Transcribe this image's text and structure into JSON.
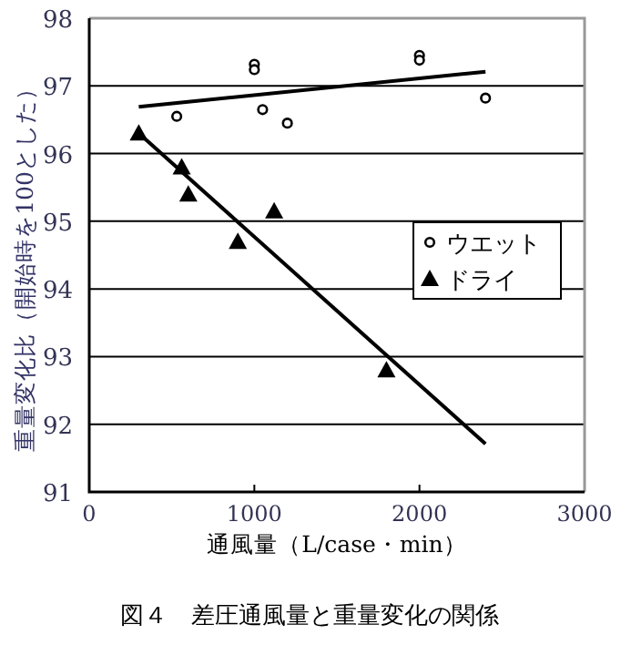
{
  "chart_data": {
    "type": "scatter",
    "title": "図４　差圧通風量と重量変化の関係",
    "xlabel": "通風量（L/case・min）",
    "ylabel": "重量変化比（開始時を100とした）",
    "xlim": [
      0,
      3000
    ],
    "xticks": [
      0,
      1000,
      2000,
      3000
    ],
    "ylim": [
      91,
      98
    ],
    "yticks": [
      91,
      92,
      93,
      94,
      95,
      96,
      97,
      98
    ],
    "grid": "y",
    "legend": "right",
    "series": [
      {
        "name": "ウエット",
        "color": "#000000",
        "marker": "circle",
        "x": [
          530,
          1000,
          1000,
          1050,
          1200,
          2000,
          2000,
          2400
        ],
        "values": [
          96.55,
          97.32,
          97.24,
          96.65,
          96.45,
          97.45,
          97.38,
          96.82
        ]
      },
      {
        "name": "ドライ",
        "color": "#000000",
        "marker": "triangle",
        "x": [
          300,
          560,
          600,
          900,
          1120,
          1800
        ],
        "values": [
          96.3,
          95.8,
          95.4,
          94.7,
          95.15,
          92.8
        ]
      },
      {
        "type": "line",
        "color": "#000000",
        "marker": "none",
        "x": [
          300,
          2400
        ],
        "values": [
          96.69,
          97.21
        ]
      },
      {
        "type": "line",
        "color": "#000000",
        "marker": "none",
        "x": [
          300,
          2400
        ],
        "values": [
          96.3,
          91.71
        ]
      }
    ]
  }
}
